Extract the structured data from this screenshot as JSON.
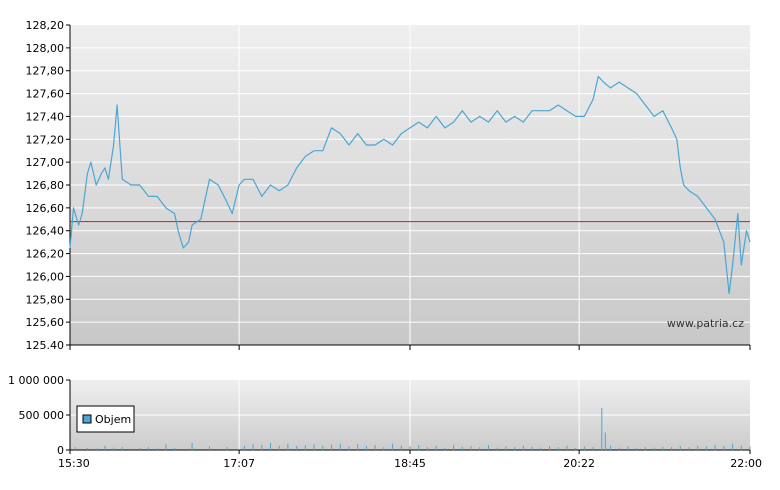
{
  "chart_data": [
    {
      "type": "line",
      "title": "",
      "xlabel": "",
      "ylabel": "",
      "ylim": [
        125.4,
        128.2
      ],
      "y_ticks": [
        "128,20",
        "128,00",
        "127,80",
        "127,60",
        "127,40",
        "127,20",
        "127,00",
        "126,80",
        "126,60",
        "126,40",
        "126,20",
        "126,00",
        "125,80",
        "125,60",
        "125.40"
      ],
      "x_ticks": [
        "15:30",
        "17:07",
        "18:45",
        "20:22",
        "22:00"
      ],
      "grid": true,
      "reference_line": {
        "value": 126.48,
        "color": "#cc3333"
      },
      "series": [
        {
          "color": "#4ba6d4",
          "points": [
            [
              "15:30",
              126.25
            ],
            [
              "15:32",
              126.6
            ],
            [
              "15:35",
              126.45
            ],
            [
              "15:37",
              126.55
            ],
            [
              "15:40",
              126.9
            ],
            [
              "15:42",
              127.0
            ],
            [
              "15:45",
              126.8
            ],
            [
              "15:48",
              126.9
            ],
            [
              "15:50",
              126.95
            ],
            [
              "15:52",
              126.85
            ],
            [
              "15:55",
              127.15
            ],
            [
              "15:57",
              127.5
            ],
            [
              "16:00",
              126.85
            ],
            [
              "16:05",
              126.8
            ],
            [
              "16:10",
              126.8
            ],
            [
              "16:15",
              126.7
            ],
            [
              "16:20",
              126.7
            ],
            [
              "16:25",
              126.6
            ],
            [
              "16:30",
              126.55
            ],
            [
              "16:32",
              126.4
            ],
            [
              "16:35",
              126.25
            ],
            [
              "16:38",
              126.3
            ],
            [
              "16:40",
              126.45
            ],
            [
              "16:45",
              126.5
            ],
            [
              "16:50",
              126.85
            ],
            [
              "16:55",
              126.8
            ],
            [
              "17:00",
              126.65
            ],
            [
              "17:03",
              126.55
            ],
            [
              "17:07",
              126.8
            ],
            [
              "17:10",
              126.85
            ],
            [
              "17:15",
              126.85
            ],
            [
              "17:20",
              126.7
            ],
            [
              "17:25",
              126.8
            ],
            [
              "17:30",
              126.75
            ],
            [
              "17:35",
              126.8
            ],
            [
              "17:40",
              126.95
            ],
            [
              "17:45",
              127.05
            ],
            [
              "17:50",
              127.1
            ],
            [
              "17:55",
              127.1
            ],
            [
              "18:00",
              127.3
            ],
            [
              "18:05",
              127.25
            ],
            [
              "18:10",
              127.15
            ],
            [
              "18:15",
              127.25
            ],
            [
              "18:20",
              127.15
            ],
            [
              "18:25",
              127.15
            ],
            [
              "18:30",
              127.2
            ],
            [
              "18:35",
              127.15
            ],
            [
              "18:40",
              127.25
            ],
            [
              "18:45",
              127.3
            ],
            [
              "18:50",
              127.35
            ],
            [
              "18:55",
              127.3
            ],
            [
              "19:00",
              127.4
            ],
            [
              "19:05",
              127.3
            ],
            [
              "19:10",
              127.35
            ],
            [
              "19:15",
              127.45
            ],
            [
              "19:20",
              127.35
            ],
            [
              "19:25",
              127.4
            ],
            [
              "19:30",
              127.35
            ],
            [
              "19:35",
              127.45
            ],
            [
              "19:40",
              127.35
            ],
            [
              "19:45",
              127.4
            ],
            [
              "19:50",
              127.35
            ],
            [
              "19:55",
              127.45
            ],
            [
              "20:00",
              127.45
            ],
            [
              "20:05",
              127.45
            ],
            [
              "20:10",
              127.5
            ],
            [
              "20:15",
              127.45
            ],
            [
              "20:20",
              127.4
            ],
            [
              "20:22",
              127.4
            ],
            [
              "20:25",
              127.4
            ],
            [
              "20:30",
              127.55
            ],
            [
              "20:33",
              127.75
            ],
            [
              "20:36",
              127.7
            ],
            [
              "20:40",
              127.65
            ],
            [
              "20:45",
              127.7
            ],
            [
              "20:50",
              127.65
            ],
            [
              "20:55",
              127.6
            ],
            [
              "21:00",
              127.5
            ],
            [
              "21:05",
              127.4
            ],
            [
              "21:10",
              127.45
            ],
            [
              "21:15",
              127.3
            ],
            [
              "21:18",
              127.2
            ],
            [
              "21:20",
              126.95
            ],
            [
              "21:22",
              126.8
            ],
            [
              "21:25",
              126.75
            ],
            [
              "21:30",
              126.7
            ],
            [
              "21:35",
              126.6
            ],
            [
              "21:40",
              126.5
            ],
            [
              "21:45",
              126.3
            ],
            [
              "21:48",
              125.85
            ],
            [
              "21:50",
              126.1
            ],
            [
              "21:53",
              126.55
            ],
            [
              "21:55",
              126.1
            ],
            [
              "21:58",
              126.4
            ],
            [
              "22:00",
              126.3
            ]
          ]
        }
      ],
      "watermark": "www.patria.cz"
    },
    {
      "type": "bar",
      "title": "",
      "xlabel": "",
      "ylabel": "",
      "ylim": [
        0,
        1000000
      ],
      "y_ticks": [
        "1 000 000",
        "500 000",
        "0"
      ],
      "x_ticks": [
        "15:30",
        "17:07",
        "18:45",
        "20:22",
        "22:00"
      ],
      "legend": {
        "label": "Objem",
        "position": "top-left",
        "color": "#4ba6d4"
      },
      "series": [
        {
          "name": "Objem",
          "color": "#4ba6d4",
          "points": [
            [
              "15:33",
              40000
            ],
            [
              "15:40",
              30000
            ],
            [
              "15:45",
              25000
            ],
            [
              "15:50",
              60000
            ],
            [
              "15:55",
              35000
            ],
            [
              "16:00",
              45000
            ],
            [
              "16:05",
              20000
            ],
            [
              "16:10",
              30000
            ],
            [
              "16:15",
              40000
            ],
            [
              "16:20",
              25000
            ],
            [
              "16:25",
              80000
            ],
            [
              "16:30",
              30000
            ],
            [
              "16:40",
              100000
            ],
            [
              "16:50",
              50000
            ],
            [
              "17:00",
              40000
            ],
            [
              "17:10",
              60000
            ],
            [
              "17:15",
              80000
            ],
            [
              "17:20",
              70000
            ],
            [
              "17:25",
              100000
            ],
            [
              "17:30",
              60000
            ],
            [
              "17:35",
              90000
            ],
            [
              "17:40",
              55000
            ],
            [
              "17:45",
              70000
            ],
            [
              "17:50",
              80000
            ],
            [
              "17:55",
              60000
            ],
            [
              "18:00",
              75000
            ],
            [
              "18:05",
              90000
            ],
            [
              "18:10",
              50000
            ],
            [
              "18:15",
              85000
            ],
            [
              "18:20",
              60000
            ],
            [
              "18:25",
              70000
            ],
            [
              "18:30",
              40000
            ],
            [
              "18:35",
              90000
            ],
            [
              "18:40",
              60000
            ],
            [
              "18:45",
              50000
            ],
            [
              "18:50",
              70000
            ],
            [
              "18:55",
              40000
            ],
            [
              "19:00",
              60000
            ],
            [
              "19:05",
              30000
            ],
            [
              "19:10",
              65000
            ],
            [
              "19:15",
              45000
            ],
            [
              "19:20",
              55000
            ],
            [
              "19:25",
              40000
            ],
            [
              "19:30",
              70000
            ],
            [
              "19:35",
              35000
            ],
            [
              "19:40",
              50000
            ],
            [
              "19:45",
              40000
            ],
            [
              "19:50",
              60000
            ],
            [
              "19:55",
              45000
            ],
            [
              "20:00",
              35000
            ],
            [
              "20:05",
              55000
            ],
            [
              "20:10",
              40000
            ],
            [
              "20:15",
              60000
            ],
            [
              "20:20",
              30000
            ],
            [
              "20:25",
              50000
            ],
            [
              "20:30",
              40000
            ],
            [
              "20:35",
              600000
            ],
            [
              "20:37",
              250000
            ],
            [
              "20:40",
              60000
            ],
            [
              "20:45",
              35000
            ],
            [
              "20:50",
              50000
            ],
            [
              "20:55",
              30000
            ],
            [
              "21:00",
              40000
            ],
            [
              "21:05",
              35000
            ],
            [
              "21:10",
              45000
            ],
            [
              "21:15",
              40000
            ],
            [
              "21:20",
              55000
            ],
            [
              "21:25",
              40000
            ],
            [
              "21:30",
              60000
            ],
            [
              "21:35",
              50000
            ],
            [
              "21:40",
              70000
            ],
            [
              "21:45",
              55000
            ],
            [
              "21:50",
              90000
            ],
            [
              "21:55",
              60000
            ],
            [
              "22:00",
              50000
            ]
          ]
        }
      ]
    }
  ]
}
